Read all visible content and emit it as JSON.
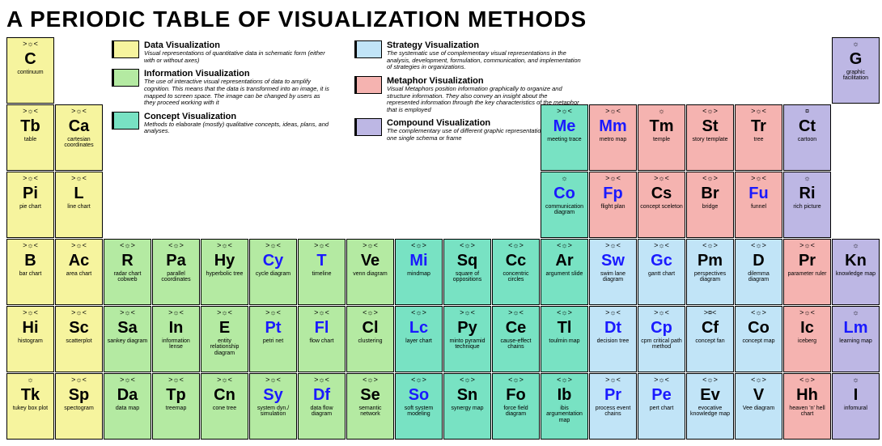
{
  "title": "A PERIODIC TABLE OF VISUALIZATION METHODS",
  "colors": {
    "data": "#f6f49e",
    "information": "#b4eaa2",
    "concept": "#78e2c3",
    "strategy": "#c1e4f7",
    "metaphor": "#f5b3b0",
    "compound": "#bdb7e4"
  },
  "legend": [
    {
      "col": 1,
      "color_key": "data",
      "title": "Data Visualization",
      "desc": "Visual representations of quantitative data in schematic form (either with or without axes)"
    },
    {
      "col": 1,
      "color_key": "information",
      "title": "Information Visualization",
      "desc": "The use of interactive visual representations of data to amplify cognition. This means that the data is transformed into an image, it is mapped to screen space. The image can be changed by users as they proceed working with it"
    },
    {
      "col": 1,
      "color_key": "concept",
      "title": "Concept Visualization",
      "desc": "Methods to elaborate (mostly) qualitative concepts, ideas, plans, and analyses."
    },
    {
      "col": 2,
      "color_key": "strategy",
      "title": "Strategy Visualization",
      "desc": "The systematic use of complementary visual representations in the analysis, development, formulation, communication, and implementation of strategies in organizations."
    },
    {
      "col": 2,
      "color_key": "metaphor",
      "title": "Metaphor Visualization",
      "desc": "Visual Metaphors position information graphically to organize and structure information. They also convey an insight about the represented information through the key characteristics of the metaphor that is employed"
    },
    {
      "col": 2,
      "color_key": "compound",
      "title": "Compound Visualization",
      "desc": "The complementary use of different graphic representation formats in one single schema or frame"
    }
  ],
  "cells": [
    {
      "row": 1,
      "col": 1,
      "cat": "data",
      "marks": ">☼<",
      "sym": "C",
      "name": "continuum"
    },
    {
      "row": 1,
      "col": 18,
      "cat": "compound",
      "marks": "☼",
      "sym": "G",
      "name": "graphic facilitation"
    },
    {
      "row": 2,
      "col": 1,
      "cat": "data",
      "marks": ">☼<",
      "sym": "Tb",
      "name": "table"
    },
    {
      "row": 2,
      "col": 2,
      "cat": "data",
      "marks": ">☼<",
      "sym": "Ca",
      "name": "cartesian coordinates"
    },
    {
      "row": 2,
      "col": 12,
      "cat": "concept",
      "marks": ">☼<",
      "sym": "Me",
      "name": "meeting trace",
      "blue": true
    },
    {
      "row": 2,
      "col": 13,
      "cat": "metaphor",
      "marks": ">☼<",
      "sym": "Mm",
      "name": "metro map",
      "blue": true
    },
    {
      "row": 2,
      "col": 14,
      "cat": "metaphor",
      "marks": "☼",
      "sym": "Tm",
      "name": "temple"
    },
    {
      "row": 2,
      "col": 15,
      "cat": "metaphor",
      "marks": "<☼>",
      "sym": "St",
      "name": "story template"
    },
    {
      "row": 2,
      "col": 16,
      "cat": "metaphor",
      "marks": ">☼<",
      "sym": "Tr",
      "name": "tree"
    },
    {
      "row": 2,
      "col": 17,
      "cat": "compound",
      "marks": "¤",
      "sym": "Ct",
      "name": "cartoon"
    },
    {
      "row": 3,
      "col": 1,
      "cat": "data",
      "marks": ">☼<",
      "sym": "Pi",
      "name": "pie chart"
    },
    {
      "row": 3,
      "col": 2,
      "cat": "data",
      "marks": ">☼<",
      "sym": "L",
      "name": "line chart"
    },
    {
      "row": 3,
      "col": 12,
      "cat": "concept",
      "marks": "☼",
      "sym": "Co",
      "name": "communication diagram",
      "blue": true
    },
    {
      "row": 3,
      "col": 13,
      "cat": "metaphor",
      "marks": ">☼<",
      "sym": "Fp",
      "name": "flight plan",
      "blue": true
    },
    {
      "row": 3,
      "col": 14,
      "cat": "metaphor",
      "marks": ">☼<",
      "sym": "Cs",
      "name": "concept sceleton"
    },
    {
      "row": 3,
      "col": 15,
      "cat": "metaphor",
      "marks": "<☼>",
      "sym": "Br",
      "name": "bridge"
    },
    {
      "row": 3,
      "col": 16,
      "cat": "metaphor",
      "marks": ">☼<",
      "sym": "Fu",
      "name": "funnel",
      "blue": true
    },
    {
      "row": 3,
      "col": 17,
      "cat": "compound",
      "marks": "☼",
      "sym": "Ri",
      "name": "rich picture"
    },
    {
      "row": 4,
      "col": 1,
      "cat": "data",
      "marks": ">☼<",
      "sym": "B",
      "name": "bar chart"
    },
    {
      "row": 4,
      "col": 2,
      "cat": "data",
      "marks": ">☼<",
      "sym": "Ac",
      "name": "area chart"
    },
    {
      "row": 4,
      "col": 3,
      "cat": "information",
      "marks": "<☼>",
      "sym": "R",
      "name": "radar chart cobweb"
    },
    {
      "row": 4,
      "col": 4,
      "cat": "information",
      "marks": "<☼>",
      "sym": "Pa",
      "name": "parallel coordinates"
    },
    {
      "row": 4,
      "col": 5,
      "cat": "information",
      "marks": ">☼<",
      "sym": "Hy",
      "name": "hyperbolic tree"
    },
    {
      "row": 4,
      "col": 6,
      "cat": "information",
      "marks": ">☼<",
      "sym": "Cy",
      "name": "cycle diagram",
      "blue": true
    },
    {
      "row": 4,
      "col": 7,
      "cat": "information",
      "marks": ">☼<",
      "sym": "T",
      "name": "timeline",
      "blue": true
    },
    {
      "row": 4,
      "col": 8,
      "cat": "information",
      "marks": ">☼<",
      "sym": "Ve",
      "name": "venn diagram"
    },
    {
      "row": 4,
      "col": 9,
      "cat": "concept",
      "marks": "<☼>",
      "sym": "Mi",
      "name": "mindmap",
      "blue": true
    },
    {
      "row": 4,
      "col": 10,
      "cat": "concept",
      "marks": "<☼>",
      "sym": "Sq",
      "name": "square of oppositions"
    },
    {
      "row": 4,
      "col": 11,
      "cat": "concept",
      "marks": "<☼>",
      "sym": "Cc",
      "name": "concentric circles"
    },
    {
      "row": 4,
      "col": 12,
      "cat": "concept",
      "marks": "<☼>",
      "sym": "Ar",
      "name": "argument slide"
    },
    {
      "row": 4,
      "col": 13,
      "cat": "strategy",
      "marks": ">☼<",
      "sym": "Sw",
      "name": "swim lane diagram",
      "blue": true
    },
    {
      "row": 4,
      "col": 14,
      "cat": "strategy",
      "marks": ">☼<",
      "sym": "Gc",
      "name": "gantt chart",
      "blue": true
    },
    {
      "row": 4,
      "col": 15,
      "cat": "strategy",
      "marks": "<☼>",
      "sym": "Pm",
      "name": "perspectives diagram"
    },
    {
      "row": 4,
      "col": 16,
      "cat": "strategy",
      "marks": "<☼>",
      "sym": "D",
      "name": "dilemma diagram"
    },
    {
      "row": 4,
      "col": 17,
      "cat": "metaphor",
      "marks": ">☼<",
      "sym": "Pr",
      "name": "parameter ruler"
    },
    {
      "row": 4,
      "col": 18,
      "cat": "compound",
      "marks": "☼",
      "sym": "Kn",
      "name": "knowledge map"
    },
    {
      "row": 5,
      "col": 1,
      "cat": "data",
      "marks": ">☼<",
      "sym": "Hi",
      "name": "histogram"
    },
    {
      "row": 5,
      "col": 2,
      "cat": "data",
      "marks": ">☼<",
      "sym": "Sc",
      "name": "scatterplot"
    },
    {
      "row": 5,
      "col": 3,
      "cat": "information",
      "marks": ">☼<",
      "sym": "Sa",
      "name": "sankey diagram"
    },
    {
      "row": 5,
      "col": 4,
      "cat": "information",
      "marks": ">☼<",
      "sym": "In",
      "name": "information lense"
    },
    {
      "row": 5,
      "col": 5,
      "cat": "information",
      "marks": ">☼<",
      "sym": "E",
      "name": "entity relationship diagram"
    },
    {
      "row": 5,
      "col": 6,
      "cat": "information",
      "marks": ">☼<",
      "sym": "Pt",
      "name": "petri net",
      "blue": true
    },
    {
      "row": 5,
      "col": 7,
      "cat": "information",
      "marks": ">☼<",
      "sym": "Fl",
      "name": "flow chart",
      "blue": true
    },
    {
      "row": 5,
      "col": 8,
      "cat": "information",
      "marks": "<☼>",
      "sym": "Cl",
      "name": "clustering"
    },
    {
      "row": 5,
      "col": 9,
      "cat": "concept",
      "marks": "<☼>",
      "sym": "Lc",
      "name": "layer chart",
      "blue": true
    },
    {
      "row": 5,
      "col": 10,
      "cat": "concept",
      "marks": ">☼<",
      "sym": "Py",
      "name": "minto pyramid technique"
    },
    {
      "row": 5,
      "col": 11,
      "cat": "concept",
      "marks": ">☼<",
      "sym": "Ce",
      "name": "cause-effect chains"
    },
    {
      "row": 5,
      "col": 12,
      "cat": "concept",
      "marks": "<☼>",
      "sym": "Tl",
      "name": "toulmin map"
    },
    {
      "row": 5,
      "col": 13,
      "cat": "strategy",
      "marks": ">☼<",
      "sym": "Dt",
      "name": "decision tree",
      "blue": true
    },
    {
      "row": 5,
      "col": 14,
      "cat": "strategy",
      "marks": ">☼<",
      "sym": "Cp",
      "name": "cpm critical path method",
      "blue": true
    },
    {
      "row": 5,
      "col": 15,
      "cat": "strategy",
      "marks": ">¤<",
      "sym": "Cf",
      "name": "concept fan"
    },
    {
      "row": 5,
      "col": 16,
      "cat": "strategy",
      "marks": "<☼>",
      "sym": "Co",
      "name": "concept map"
    },
    {
      "row": 5,
      "col": 17,
      "cat": "metaphor",
      "marks": ">☼<",
      "sym": "Ic",
      "name": "iceberg"
    },
    {
      "row": 5,
      "col": 18,
      "cat": "compound",
      "marks": "☼",
      "sym": "Lm",
      "name": "learning map",
      "blue": true
    },
    {
      "row": 6,
      "col": 1,
      "cat": "data",
      "marks": "☼",
      "sym": "Tk",
      "name": "tukey box plot"
    },
    {
      "row": 6,
      "col": 2,
      "cat": "data",
      "marks": ">☼<",
      "sym": "Sp",
      "name": "spectogram"
    },
    {
      "row": 6,
      "col": 3,
      "cat": "information",
      "marks": ">☼<",
      "sym": "Da",
      "name": "data map"
    },
    {
      "row": 6,
      "col": 4,
      "cat": "information",
      "marks": ">☼<",
      "sym": "Tp",
      "name": "treemap"
    },
    {
      "row": 6,
      "col": 5,
      "cat": "information",
      "marks": ">☼<",
      "sym": "Cn",
      "name": "cone tree"
    },
    {
      "row": 6,
      "col": 6,
      "cat": "information",
      "marks": ">☼<",
      "sym": "Sy",
      "name": "system dyn./ simulation",
      "blue": true
    },
    {
      "row": 6,
      "col": 7,
      "cat": "information",
      "marks": ">☼<",
      "sym": "Df",
      "name": "data flow diagram",
      "blue": true
    },
    {
      "row": 6,
      "col": 8,
      "cat": "information",
      "marks": "<☼>",
      "sym": "Se",
      "name": "semantic network"
    },
    {
      "row": 6,
      "col": 9,
      "cat": "concept",
      "marks": "<☼>",
      "sym": "So",
      "name": "soft system modeling",
      "blue": true
    },
    {
      "row": 6,
      "col": 10,
      "cat": "concept",
      "marks": "<☼>",
      "sym": "Sn",
      "name": "synergy map"
    },
    {
      "row": 6,
      "col": 11,
      "cat": "concept",
      "marks": "<☼>",
      "sym": "Fo",
      "name": "force field diagram"
    },
    {
      "row": 6,
      "col": 12,
      "cat": "concept",
      "marks": "<☼>",
      "sym": "Ib",
      "name": "ibis argumentation map"
    },
    {
      "row": 6,
      "col": 13,
      "cat": "strategy",
      "marks": ">☼<",
      "sym": "Pr",
      "name": "process event chains",
      "blue": true
    },
    {
      "row": 6,
      "col": 14,
      "cat": "strategy",
      "marks": ">☼<",
      "sym": "Pe",
      "name": "pert chart",
      "blue": true
    },
    {
      "row": 6,
      "col": 15,
      "cat": "strategy",
      "marks": "<☼>",
      "sym": "Ev",
      "name": "evocative knowledge map"
    },
    {
      "row": 6,
      "col": 16,
      "cat": "strategy",
      "marks": "<☼>",
      "sym": "V",
      "name": "Vee diagram"
    },
    {
      "row": 6,
      "col": 17,
      "cat": "metaphor",
      "marks": "<☼>",
      "sym": "Hh",
      "name": "heaven 'n' hell chart"
    },
    {
      "row": 6,
      "col": 18,
      "cat": "compound",
      "marks": "☼",
      "sym": "I",
      "name": "infomural"
    }
  ]
}
